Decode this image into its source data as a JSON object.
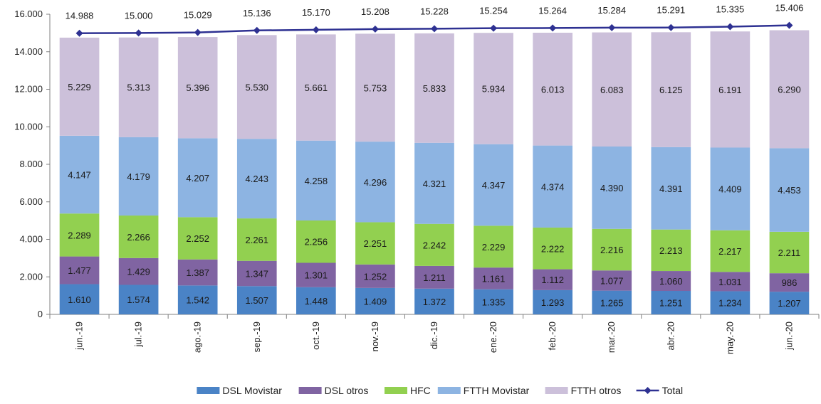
{
  "chart_data": {
    "type": "bar",
    "stacked": true,
    "categories": [
      "jun.-19",
      "jul.-19",
      "ago.-19",
      "sep.-19",
      "oct.-19",
      "nov.-19",
      "dic.-19",
      "ene.-20",
      "feb.-20",
      "mar.-20",
      "abr.-20",
      "may.-20",
      "jun.-20"
    ],
    "series": [
      {
        "name": "DSL Movistar",
        "color": "#4a83c6",
        "values": [
          1610,
          1574,
          1542,
          1507,
          1448,
          1409,
          1372,
          1335,
          1293,
          1265,
          1251,
          1234,
          1207
        ]
      },
      {
        "name": "DSL otros",
        "color": "#8064a2",
        "values": [
          1477,
          1429,
          1387,
          1347,
          1301,
          1252,
          1211,
          1161,
          1112,
          1077,
          1060,
          1031,
          986
        ]
      },
      {
        "name": "HFC",
        "color": "#92d050",
        "values": [
          2289,
          2266,
          2252,
          2261,
          2256,
          2251,
          2242,
          2229,
          2222,
          2216,
          2213,
          2217,
          2211
        ]
      },
      {
        "name": "FTTH Movistar",
        "color": "#8db4e2",
        "values": [
          4147,
          4179,
          4207,
          4243,
          4258,
          4296,
          4321,
          4347,
          4374,
          4390,
          4391,
          4409,
          4453
        ]
      },
      {
        "name": "FTTH otros",
        "color": "#ccc0da",
        "values": [
          5229,
          5313,
          5396,
          5530,
          5661,
          5753,
          5833,
          5934,
          6013,
          6083,
          6125,
          6191,
          6290
        ]
      }
    ],
    "segment_labels": [
      [
        "1.610",
        "1.574",
        "1.542",
        "1.507",
        "1.448",
        "1.409",
        "1.372",
        "1.335",
        "1.293",
        "1.265",
        "1.251",
        "1.234",
        "1.207"
      ],
      [
        "1.477",
        "1.429",
        "1.387",
        "1.347",
        "1.301",
        "1.252",
        "1.211",
        "1.161",
        "1.112",
        "1.077",
        "1.060",
        "1.031",
        "986"
      ],
      [
        "2.289",
        "2.266",
        "2.252",
        "2.261",
        "2.256",
        "2.251",
        "2.242",
        "2.229",
        "2.222",
        "2.216",
        "2.213",
        "2.217",
        "2.211"
      ],
      [
        "4.147",
        "4.179",
        "4.207",
        "4.243",
        "4.258",
        "4.296",
        "4.321",
        "4.347",
        "4.374",
        "4.390",
        "4.391",
        "4.409",
        "4.453"
      ],
      [
        "5.229",
        "5.313",
        "5.396",
        "5.530",
        "5.661",
        "5.753",
        "5.833",
        "5.934",
        "6.013",
        "6.083",
        "6.125",
        "6.191",
        "6.290"
      ]
    ],
    "line_series": {
      "name": "Total",
      "color": "#2e3192",
      "values": [
        14988,
        15000,
        15029,
        15136,
        15170,
        15208,
        15228,
        15254,
        15264,
        15284,
        15291,
        15335,
        15406
      ],
      "labels": [
        "14.988",
        "15.000",
        "15.029",
        "15.136",
        "15.170",
        "15.208",
        "15.228",
        "15.254",
        "15.264",
        "15.284",
        "15.291",
        "15.335",
        "15.406"
      ]
    },
    "ylim": [
      0,
      16000
    ],
    "yticks": [
      0,
      2000,
      4000,
      6000,
      8000,
      10000,
      12000,
      14000,
      16000
    ],
    "ytick_labels": [
      "0",
      "2.000",
      "4.000",
      "6.000",
      "8.000",
      "10.000",
      "12.000",
      "14.000",
      "16.000"
    ],
    "grid": false,
    "legend_position": "bottom",
    "title": "",
    "xlabel": "",
    "ylabel": ""
  }
}
